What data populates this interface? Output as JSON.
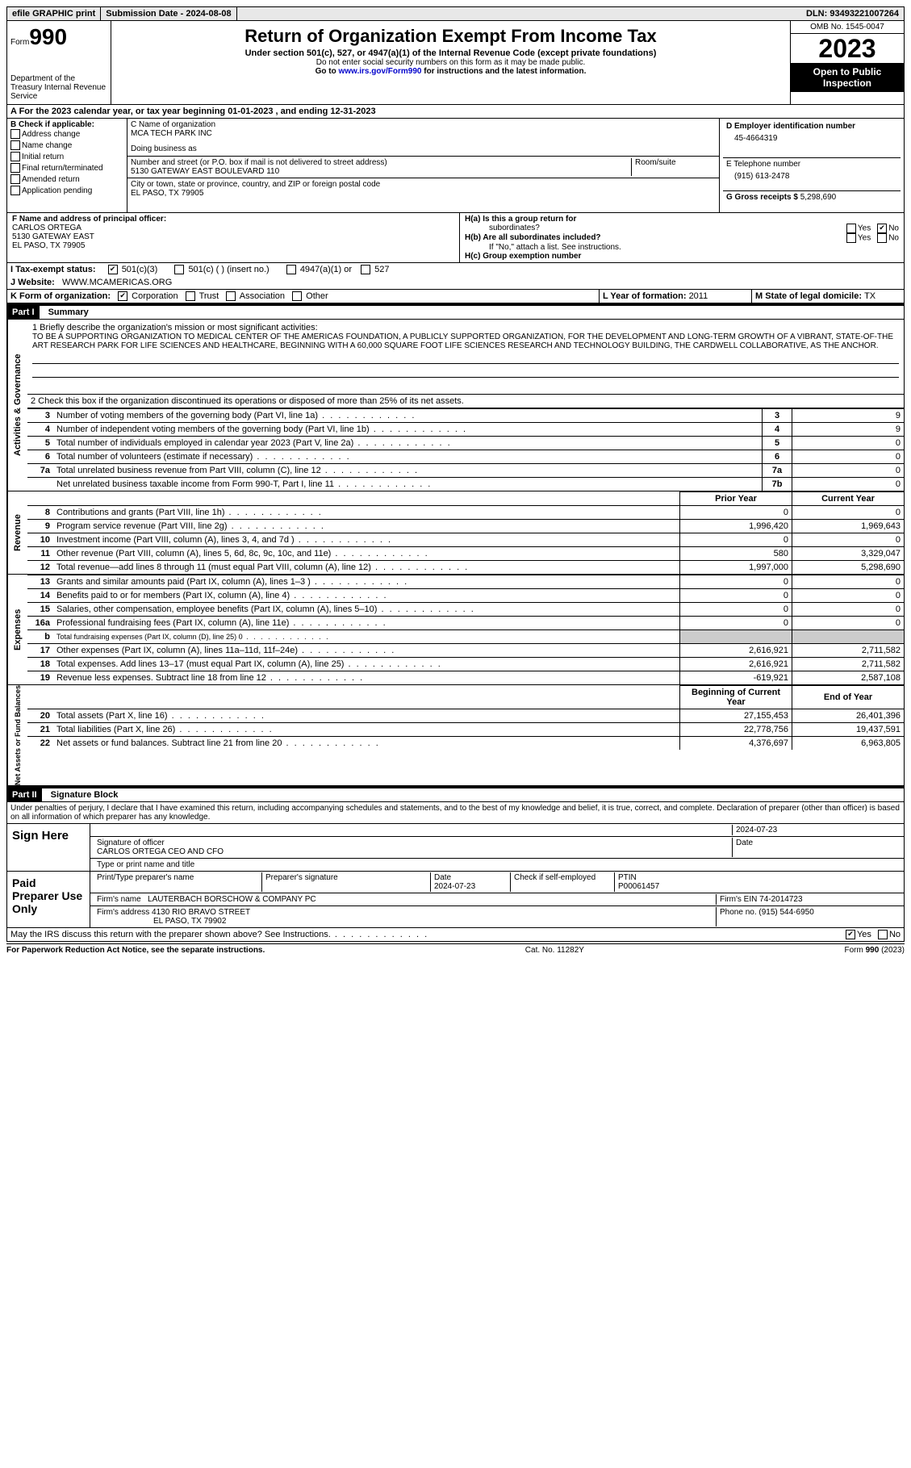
{
  "topbar": {
    "efile": "efile GRAPHIC print",
    "sub_label": "Submission Date - ",
    "sub_date": "2024-08-08",
    "dln_label": "DLN: ",
    "dln": "93493221007264"
  },
  "header": {
    "form_word": "Form",
    "form_num": "990",
    "dept": "Department of the Treasury Internal Revenue Service",
    "title": "Return of Organization Exempt From Income Tax",
    "sub": "Under section 501(c), 527, or 4947(a)(1) of the Internal Revenue Code (except private foundations)",
    "note1": "Do not enter social security numbers on this form as it may be made public.",
    "note2_pre": "Go to ",
    "note2_link": "www.irs.gov/Form990",
    "note2_post": " for instructions and the latest information.",
    "omb": "OMB No. 1545-0047",
    "year": "2023",
    "inspect": "Open to Public Inspection"
  },
  "line_a": "A For the 2023 calendar year, or tax year beginning 01-01-2023    , and ending 12-31-2023",
  "col_b": {
    "title": "B Check if applicable:",
    "opts": [
      "Address change",
      "Name change",
      "Initial return",
      "Final return/terminated",
      "Amended return",
      "Application pending"
    ]
  },
  "col_c": {
    "name_label": "C Name of organization",
    "name": "MCA TECH PARK INC",
    "dba_label": "Doing business as",
    "street_label": "Number and street (or P.O. box if mail is not delivered to street address)",
    "room_label": "Room/suite",
    "street": "5130 GATEWAY EAST BOULEVARD 110",
    "city_label": "City or town, state or province, country, and ZIP or foreign postal code",
    "city": "EL PASO, TX  79905"
  },
  "col_d": {
    "ein_label": "D Employer identification number",
    "ein": "45-4664319",
    "tel_label": "E Telephone number",
    "tel": "(915) 613-2478",
    "gross_label": "G Gross receipts $ ",
    "gross": "5,298,690"
  },
  "row_f": {
    "label": "F  Name and address of principal officer:",
    "name": "CARLOS ORTEGA",
    "addr1": "5130 GATEWAY EAST",
    "addr2": "EL PASO, TX  79905"
  },
  "row_h": {
    "ha": "H(a)  Is this a group return for",
    "ha2": "subordinates?",
    "hb": "H(b)  Are all subordinates included?",
    "hb_note": "If \"No,\" attach a list. See instructions.",
    "hc": "H(c)  Group exemption number  ",
    "yes": "Yes",
    "no": "No"
  },
  "row_i": {
    "label": "I   Tax-exempt status:",
    "o1": "501(c)(3)",
    "o2": "501(c) (  ) (insert no.)",
    "o3": "4947(a)(1) or",
    "o4": "527"
  },
  "row_j": {
    "label": "J   Website: ",
    "val": "WWW.MCAMERICAS.ORG"
  },
  "row_k": {
    "label": "K Form of organization:",
    "opts": [
      "Corporation",
      "Trust",
      "Association",
      "Other"
    ]
  },
  "row_l": {
    "label": "L Year of formation: ",
    "val": "2011"
  },
  "row_m": {
    "label": "M State of legal domicile: ",
    "val": "TX"
  },
  "part1": {
    "label": "Part I",
    "title": "Summary"
  },
  "mission": {
    "intro": "1   Briefly describe the organization's mission or most significant activities:",
    "text": "TO BE A SUPPORTING ORGANIZATION TO MEDICAL CENTER OF THE AMERICAS FOUNDATION, A PUBLICLY SUPPORTED ORGANIZATION, FOR THE DEVELOPMENT AND LONG-TERM GROWTH OF A VIBRANT, STATE-OF-THE ART RESEARCH PARK FOR LIFE SCIENCES AND HEALTHCARE, BEGINNING WITH A 60,000 SQUARE FOOT LIFE SCIENCES RESEARCH AND TECHNOLOGY BUILDING, THE CARDWELL COLLABORATIVE, AS THE ANCHOR."
  },
  "line2": "2    Check this box       if the organization discontinued its operations or disposed of more than 25% of its net assets.",
  "gov_lines": [
    {
      "n": "3",
      "t": "Number of voting members of the governing body (Part VI, line 1a)",
      "b": "3",
      "v": "9"
    },
    {
      "n": "4",
      "t": "Number of independent voting members of the governing body (Part VI, line 1b)",
      "b": "4",
      "v": "9"
    },
    {
      "n": "5",
      "t": "Total number of individuals employed in calendar year 2023 (Part V, line 2a)",
      "b": "5",
      "v": "0"
    },
    {
      "n": "6",
      "t": "Total number of volunteers (estimate if necessary)",
      "b": "6",
      "v": "0"
    },
    {
      "n": "7a",
      "t": "Total unrelated business revenue from Part VIII, column (C), line 12",
      "b": "7a",
      "v": "0"
    },
    {
      "n": "",
      "t": "Net unrelated business taxable income from Form 990-T, Part I, line 11",
      "b": "7b",
      "v": "0"
    }
  ],
  "col_heads": {
    "prior": "Prior Year",
    "current": "Current Year"
  },
  "revenue": [
    {
      "n": "8",
      "t": "Contributions and grants (Part VIII, line 1h)",
      "p": "0",
      "c": "0"
    },
    {
      "n": "9",
      "t": "Program service revenue (Part VIII, line 2g)",
      "p": "1,996,420",
      "c": "1,969,643"
    },
    {
      "n": "10",
      "t": "Investment income (Part VIII, column (A), lines 3, 4, and 7d )",
      "p": "0",
      "c": "0"
    },
    {
      "n": "11",
      "t": "Other revenue (Part VIII, column (A), lines 5, 6d, 8c, 9c, 10c, and 11e)",
      "p": "580",
      "c": "3,329,047"
    },
    {
      "n": "12",
      "t": "Total revenue—add lines 8 through 11 (must equal Part VIII, column (A), line 12)",
      "p": "1,997,000",
      "c": "5,298,690"
    }
  ],
  "expenses": [
    {
      "n": "13",
      "t": "Grants and similar amounts paid (Part IX, column (A), lines 1–3 )",
      "p": "0",
      "c": "0"
    },
    {
      "n": "14",
      "t": "Benefits paid to or for members (Part IX, column (A), line 4)",
      "p": "0",
      "c": "0"
    },
    {
      "n": "15",
      "t": "Salaries, other compensation, employee benefits (Part IX, column (A), lines 5–10)",
      "p": "0",
      "c": "0"
    },
    {
      "n": "16a",
      "t": "Professional fundraising fees (Part IX, column (A), line 11e)",
      "p": "0",
      "c": "0"
    },
    {
      "n": "b",
      "t": "Total fundraising expenses (Part IX, column (D), line 25) 0",
      "p": "",
      "c": "",
      "shade": true,
      "small": true
    },
    {
      "n": "17",
      "t": "Other expenses (Part IX, column (A), lines 11a–11d, 11f–24e)",
      "p": "2,616,921",
      "c": "2,711,582"
    },
    {
      "n": "18",
      "t": "Total expenses. Add lines 13–17 (must equal Part IX, column (A), line 25)",
      "p": "2,616,921",
      "c": "2,711,582"
    },
    {
      "n": "19",
      "t": "Revenue less expenses. Subtract line 18 from line 12",
      "p": "-619,921",
      "c": "2,587,108"
    }
  ],
  "balance_heads": {
    "b": "Beginning of Current Year",
    "e": "End of Year"
  },
  "balance": [
    {
      "n": "20",
      "t": "Total assets (Part X, line 16)",
      "p": "27,155,453",
      "c": "26,401,396"
    },
    {
      "n": "21",
      "t": "Total liabilities (Part X, line 26)",
      "p": "22,778,756",
      "c": "19,437,591"
    },
    {
      "n": "22",
      "t": "Net assets or fund balances. Subtract line 21 from line 20",
      "p": "4,376,697",
      "c": "6,963,805"
    }
  ],
  "part2": {
    "label": "Part II",
    "title": "Signature Block"
  },
  "perjury": "Under penalties of perjury, I declare that I have examined this return, including accompanying schedules and statements, and to the best of my knowledge and belief, it is true, correct, and complete. Declaration of preparer (other than officer) is based on all information of which preparer has any knowledge.",
  "sign": {
    "here": "Sign Here",
    "sig_label": "Signature of officer",
    "date_label": "Date",
    "date": "2024-07-23",
    "name": "CARLOS ORTEGA  CEO AND CFO",
    "name_label": "Type or print name and title"
  },
  "preparer": {
    "title": "Paid Preparer Use Only",
    "name_label": "Print/Type preparer's name",
    "sig_label": "Preparer's signature",
    "date": "2024-07-23",
    "check_label": "Check       if self-employed",
    "ptin_label": "PTIN",
    "ptin": "P00061457",
    "firm_label": "Firm's name  ",
    "firm": "LAUTERBACH BORSCHOW & COMPANY PC",
    "ein_label": "Firm's EIN  ",
    "ein": "74-2014723",
    "addr_label": "Firm's address ",
    "addr1": "4130 RIO BRAVO STREET",
    "addr2": "EL PASO, TX  79902",
    "phone_label": "Phone no. ",
    "phone": "(915) 544-6950"
  },
  "discuss": "May the IRS discuss this return with the preparer shown above? See Instructions.",
  "footer": {
    "pra": "For Paperwork Reduction Act Notice, see the separate instructions.",
    "cat": "Cat. No. 11282Y",
    "form": "Form 990 (2023)"
  },
  "side_labels": {
    "gov": "Activities & Governance",
    "rev": "Revenue",
    "exp": "Expenses",
    "net": "Net Assets or Fund Balances"
  }
}
